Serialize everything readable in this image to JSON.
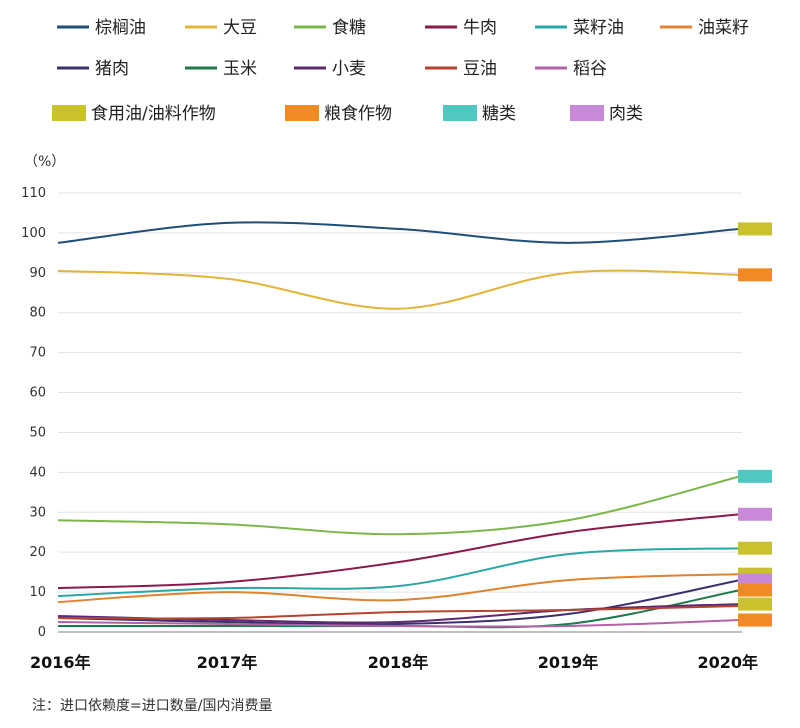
{
  "chart_data": {
    "type": "line",
    "ylabel": "（%）",
    "ylim": [
      0,
      110
    ],
    "yticks": [
      0,
      10,
      20,
      30,
      40,
      50,
      60,
      70,
      80,
      90,
      100,
      110
    ],
    "x": [
      "2016年",
      "2017年",
      "2018年",
      "2019年",
      "2020年"
    ],
    "grid": true,
    "legend_position": "top",
    "series": [
      {
        "name": "棕榈油",
        "color": "#1f4e79",
        "group": "食用油/油料作物",
        "values": [
          97.5,
          102.5,
          101,
          97.5,
          101
        ]
      },
      {
        "name": "大豆",
        "color": "#e1b43a",
        "group": "粮食作物",
        "values": [
          90.5,
          88.5,
          81,
          90,
          89.5
        ]
      },
      {
        "name": "食糖",
        "color": "#7ab648",
        "group": "糖类",
        "values": [
          28,
          27,
          24.5,
          28,
          39
        ]
      },
      {
        "name": "牛肉",
        "color": "#8b1a4a",
        "group": "肉类",
        "values": [
          11,
          12.5,
          17.5,
          25,
          29.5
        ]
      },
      {
        "name": "菜籽油",
        "color": "#2ba6a6",
        "group": "食用油/油料作物",
        "values": [
          9,
          11,
          11.5,
          19.5,
          21
        ]
      },
      {
        "name": "油菜籽",
        "color": "#e0822e",
        "group": "食用油/油料作物",
        "values": [
          7.5,
          10,
          8,
          13,
          14.5
        ]
      },
      {
        "name": "猪肉",
        "color": "#3d2f6e",
        "group": "肉类",
        "values": [
          3.5,
          2.5,
          2,
          4.5,
          13
        ]
      },
      {
        "name": "玉米",
        "color": "#1f7a4a",
        "group": "粮食作物",
        "values": [
          1.5,
          1.5,
          1.5,
          2,
          10.5
        ]
      },
      {
        "name": "小麦",
        "color": "#5c2a6e",
        "group": "粮食作物",
        "values": [
          4,
          3,
          2.5,
          5.5,
          7
        ]
      },
      {
        "name": "豆油",
        "color": "#b5452e",
        "group": "食用油/油料作物",
        "values": [
          3.5,
          3.5,
          5,
          5.5,
          6.5
        ]
      },
      {
        "name": "稻谷",
        "color": "#b462a8",
        "group": "粮食作物",
        "values": [
          2.5,
          2,
          1.5,
          1.5,
          3
        ]
      }
    ],
    "categories_legend": [
      {
        "name": "食用油/油料作物",
        "color": "#c9c22a"
      },
      {
        "name": "粮食作物",
        "color": "#f08a22"
      },
      {
        "name": "糖类",
        "color": "#4fc7c2"
      },
      {
        "name": "肉类",
        "color": "#c88ad8"
      }
    ],
    "end_markers": [
      {
        "value": 101,
        "color": "#c9c22a"
      },
      {
        "value": 89.5,
        "color": "#f08a22"
      },
      {
        "value": 39,
        "color": "#4fc7c2"
      },
      {
        "value": 29.5,
        "color": "#c88ad8"
      },
      {
        "value": 21,
        "color": "#c9c22a"
      },
      {
        "value": 14.5,
        "color": "#c9c22a"
      },
      {
        "value": 13,
        "color": "#c88ad8"
      },
      {
        "value": 10.5,
        "color": "#f08a22"
      },
      {
        "value": 7,
        "color": "#c9c22a"
      },
      {
        "value": 3,
        "color": "#f08a22"
      }
    ],
    "note": "注：进口依赖度=进口数量/国内消费量"
  }
}
